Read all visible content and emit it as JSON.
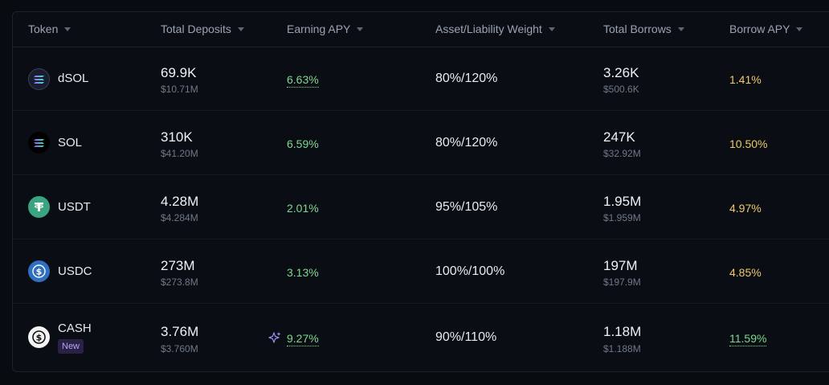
{
  "columns": {
    "token": "Token",
    "total_deposits": "Total Deposits",
    "earning_apy": "Earning APY",
    "weight": "Asset/Liability Weight",
    "total_borrows": "Total Borrows",
    "borrow_apy": "Borrow APY"
  },
  "rows": [
    {
      "symbol": "dSOL",
      "icon": "dsol-icon",
      "deposits": "69.9K",
      "deposits_usd": "$10.71M",
      "earning_apy": "6.63%",
      "weight": "80%/120%",
      "borrows": "3.26K",
      "borrows_usd": "$500.6K",
      "borrow_apy": "1.41%"
    },
    {
      "symbol": "SOL",
      "icon": "sol-icon",
      "deposits": "310K",
      "deposits_usd": "$41.20M",
      "earning_apy": "6.59%",
      "weight": "80%/120%",
      "borrows": "247K",
      "borrows_usd": "$32.92M",
      "borrow_apy": "10.50%"
    },
    {
      "symbol": "USDT",
      "icon": "usdt-icon",
      "deposits": "4.28M",
      "deposits_usd": "$4.284M",
      "earning_apy": "2.01%",
      "weight": "95%/105%",
      "borrows": "1.95M",
      "borrows_usd": "$1.959M",
      "borrow_apy": "4.97%"
    },
    {
      "symbol": "USDC",
      "icon": "usdc-icon",
      "deposits": "273M",
      "deposits_usd": "$273.8M",
      "earning_apy": "3.13%",
      "weight": "100%/100%",
      "borrows": "197M",
      "borrows_usd": "$197.9M",
      "borrow_apy": "4.85%"
    },
    {
      "symbol": "CASH",
      "icon": "cash-icon",
      "badge": "New",
      "deposits": "3.76M",
      "deposits_usd": "$3.760M",
      "earning_apy": "9.27%",
      "weight": "90%/110%",
      "borrows": "1.18M",
      "borrows_usd": "$1.188M",
      "borrow_apy": "11.59%"
    }
  ],
  "colors": {
    "earning_apy": "#7fd88e",
    "borrow_apy": "#f1c86b",
    "borrow_apy_highlight": "#7fd88e",
    "badge": "#b7a6f3"
  }
}
